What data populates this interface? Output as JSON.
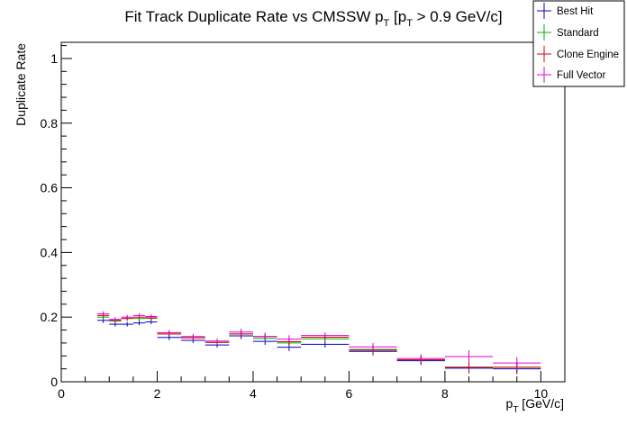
{
  "chart_data": {
    "type": "scatter",
    "title": "Fit Track Duplicate Rate vs CMSSW p_T [p_T > 0.9 GeV/c]",
    "title_parts": {
      "pre": "Fit Track Duplicate Rate vs CMSSW p",
      "sub1": "T",
      "mid": " [p",
      "sub2": "T",
      "post": " > 0.9 GeV/c]"
    },
    "xlabel": "p_T [GeV/c]",
    "xlabel_parts": {
      "pre": "p",
      "sub": "T",
      "post": " [GeV/c]"
    },
    "ylabel": "Duplicate Rate",
    "xlim": [
      0,
      10.5
    ],
    "ylim": [
      0,
      1.05
    ],
    "x_ticks": [
      "0",
      "2",
      "4",
      "6",
      "8",
      "10"
    ],
    "y_ticks": [
      "0",
      "0.2",
      "0.4",
      "0.6",
      "0.8",
      "1"
    ],
    "x_tick_values": [
      0,
      2,
      4,
      6,
      8,
      10
    ],
    "y_tick_values": [
      0,
      0.2,
      0.4,
      0.6,
      0.8,
      1.0
    ],
    "grid": false,
    "legend_position": "top-right",
    "bins": [
      {
        "lo": 0.75,
        "hi": 1.0
      },
      {
        "lo": 1.0,
        "hi": 1.25
      },
      {
        "lo": 1.25,
        "hi": 1.5
      },
      {
        "lo": 1.5,
        "hi": 1.75
      },
      {
        "lo": 1.75,
        "hi": 2.0
      },
      {
        "lo": 2.0,
        "hi": 2.5
      },
      {
        "lo": 2.5,
        "hi": 3.0
      },
      {
        "lo": 3.0,
        "hi": 3.5
      },
      {
        "lo": 3.5,
        "hi": 4.0
      },
      {
        "lo": 4.0,
        "hi": 4.5
      },
      {
        "lo": 4.5,
        "hi": 5.0
      },
      {
        "lo": 5.0,
        "hi": 6.0
      },
      {
        "lo": 6.0,
        "hi": 7.0
      },
      {
        "lo": 7.0,
        "hi": 8.0
      },
      {
        "lo": 8.0,
        "hi": 9.0
      },
      {
        "lo": 9.0,
        "hi": 10.0
      }
    ],
    "series": [
      {
        "name": "Best Hit",
        "color": "#0000cc",
        "values": [
          0.19,
          0.178,
          0.178,
          0.182,
          0.185,
          0.137,
          0.128,
          0.114,
          0.142,
          0.125,
          0.107,
          0.116,
          0.094,
          0.065,
          0.042,
          0.04
        ],
        "errors": [
          0.008,
          0.007,
          0.007,
          0.007,
          0.007,
          0.008,
          0.008,
          0.008,
          0.01,
          0.011,
          0.012,
          0.01,
          0.012,
          0.013,
          0.016,
          0.016
        ]
      },
      {
        "name": "Standard",
        "color": "#00b000",
        "values": [
          0.2,
          0.188,
          0.196,
          0.196,
          0.196,
          0.148,
          0.136,
          0.122,
          0.148,
          0.134,
          0.12,
          0.133,
          0.1,
          0.068,
          0.045,
          0.045
        ],
        "errors": [
          0.008,
          0.007,
          0.007,
          0.007,
          0.007,
          0.008,
          0.008,
          0.008,
          0.01,
          0.011,
          0.012,
          0.01,
          0.012,
          0.013,
          0.016,
          0.016
        ]
      },
      {
        "name": "Clone Engine",
        "color": "#dd0000",
        "values": [
          0.205,
          0.19,
          0.196,
          0.2,
          0.198,
          0.148,
          0.136,
          0.122,
          0.148,
          0.14,
          0.124,
          0.138,
          0.098,
          0.068,
          0.045,
          0.045
        ],
        "errors": [
          0.008,
          0.007,
          0.007,
          0.007,
          0.007,
          0.008,
          0.008,
          0.008,
          0.01,
          0.011,
          0.012,
          0.01,
          0.012,
          0.013,
          0.016,
          0.016
        ]
      },
      {
        "name": "Full Vector",
        "color": "#dd00dd",
        "values": [
          0.21,
          0.193,
          0.2,
          0.205,
          0.202,
          0.152,
          0.14,
          0.126,
          0.154,
          0.14,
          0.132,
          0.143,
          0.108,
          0.072,
          0.078,
          0.058
        ],
        "errors": [
          0.008,
          0.007,
          0.007,
          0.007,
          0.007,
          0.008,
          0.008,
          0.008,
          0.01,
          0.011,
          0.012,
          0.01,
          0.012,
          0.013,
          0.02,
          0.018
        ]
      }
    ]
  }
}
